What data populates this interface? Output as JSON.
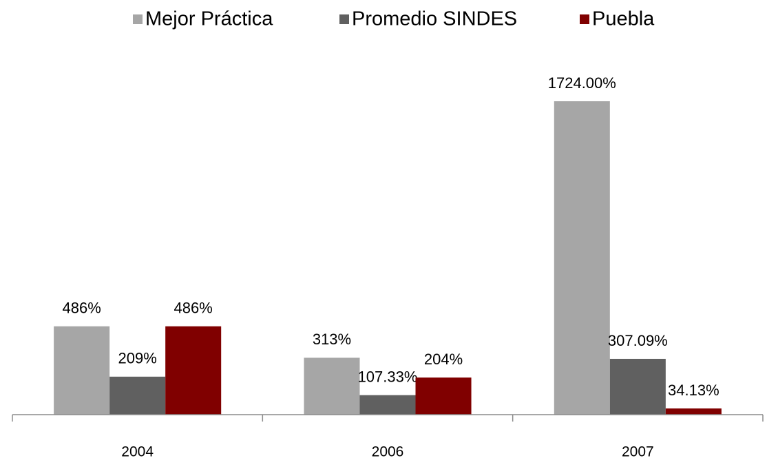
{
  "chart_data": {
    "type": "bar",
    "categories": [
      "2004",
      "2006",
      "2007"
    ],
    "series": [
      {
        "name": "Mejor Práctica",
        "color": "#a6a6a6",
        "values": [
          486,
          313,
          1724
        ],
        "value_labels": [
          "486%",
          "313%",
          "1724.00%"
        ]
      },
      {
        "name": "Promedio SINDES",
        "color": "#606060",
        "values": [
          209,
          107.33,
          307.09
        ],
        "value_labels": [
          "209%",
          "107.33%",
          "307.09%"
        ]
      },
      {
        "name": "Puebla",
        "color": "#800000",
        "values": [
          486,
          204,
          34.13
        ],
        "value_labels": [
          "486%",
          "204%",
          "34.13%"
        ]
      }
    ],
    "legend": "top"
  }
}
